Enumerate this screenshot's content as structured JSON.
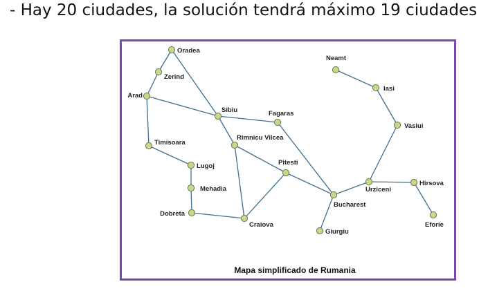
{
  "heading": "- Hay 20 ciudades, la solución tendrá máximo 19 ciudades",
  "map": {
    "caption": "Mapa simplificado de Rumania",
    "frame_color": "#7a48a8",
    "road_color": "#3d6e8f",
    "city_color": "#c9d591",
    "cities": [
      {
        "id": "oradea",
        "label": "Oradea"
      },
      {
        "id": "zerind",
        "label": "Zerind"
      },
      {
        "id": "arad",
        "label": "Arad"
      },
      {
        "id": "sibiu",
        "label": "Sibiu"
      },
      {
        "id": "fagaras",
        "label": "Fagaras"
      },
      {
        "id": "timisoara",
        "label": "Timisoara"
      },
      {
        "id": "rimnicu",
        "label": "Rimnicu Vilcea"
      },
      {
        "id": "lugoj",
        "label": "Lugoj"
      },
      {
        "id": "pitesti",
        "label": "Pitesti"
      },
      {
        "id": "mehadia",
        "label": "Mehadia"
      },
      {
        "id": "dobreta",
        "label": "Dobreta"
      },
      {
        "id": "craiova",
        "label": "Craiova"
      },
      {
        "id": "bucharest",
        "label": "Bucharest"
      },
      {
        "id": "giurgiu",
        "label": "Giurgiu"
      },
      {
        "id": "urziceni",
        "label": "Urziceni"
      },
      {
        "id": "hirsova",
        "label": "Hirsova"
      },
      {
        "id": "eforie",
        "label": "Eforie"
      },
      {
        "id": "vasiui",
        "label": "Vasiui"
      },
      {
        "id": "iasi",
        "label": "Iasi"
      },
      {
        "id": "neamt",
        "label": "Neamt"
      }
    ],
    "roads": [
      [
        "oradea",
        "zerind"
      ],
      [
        "zerind",
        "arad"
      ],
      [
        "oradea",
        "sibiu"
      ],
      [
        "arad",
        "sibiu"
      ],
      [
        "arad",
        "timisoara"
      ],
      [
        "timisoara",
        "lugoj"
      ],
      [
        "lugoj",
        "mehadia"
      ],
      [
        "mehadia",
        "dobreta"
      ],
      [
        "dobreta",
        "craiova"
      ],
      [
        "sibiu",
        "fagaras"
      ],
      [
        "sibiu",
        "rimnicu"
      ],
      [
        "rimnicu",
        "craiova"
      ],
      [
        "rimnicu",
        "pitesti"
      ],
      [
        "pitesti",
        "craiova"
      ],
      [
        "pitesti",
        "bucharest"
      ],
      [
        "fagaras",
        "bucharest"
      ],
      [
        "bucharest",
        "giurgiu"
      ],
      [
        "bucharest",
        "urziceni"
      ],
      [
        "urziceni",
        "hirsova"
      ],
      [
        "hirsova",
        "eforie"
      ],
      [
        "urziceni",
        "vasiui"
      ],
      [
        "vasiui",
        "iasi"
      ],
      [
        "iasi",
        "neamt"
      ]
    ]
  }
}
